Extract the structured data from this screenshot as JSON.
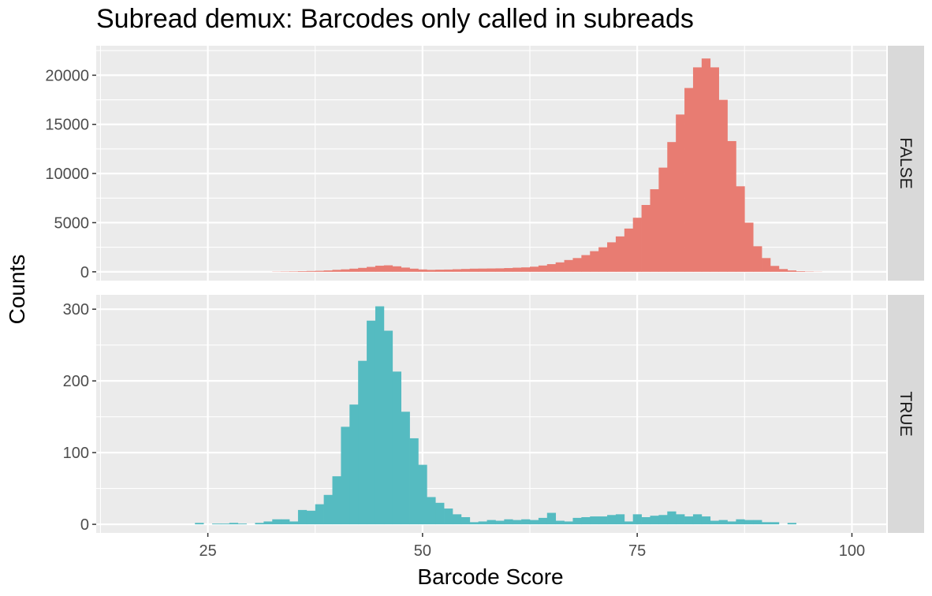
{
  "chart_data": {
    "type": "bar",
    "title": "Subread demux: Barcodes only called in subreads",
    "xlabel": "Barcode Score",
    "ylabel": "Counts",
    "xlim": [
      12,
      104
    ],
    "x_ticks": [
      25,
      50,
      75,
      100
    ],
    "bin_width": 1,
    "grid": true,
    "legend": "none",
    "panels": [
      {
        "name": "FALSE",
        "color": "#E87C72",
        "ylim": [
          -900,
          23000
        ],
        "y_ticks": [
          0,
          5000,
          10000,
          15000,
          20000
        ],
        "bins": [
          [
            33,
            20
          ],
          [
            34,
            30
          ],
          [
            35,
            40
          ],
          [
            36,
            60
          ],
          [
            37,
            80
          ],
          [
            38,
            100
          ],
          [
            39,
            140
          ],
          [
            40,
            200
          ],
          [
            41,
            250
          ],
          [
            42,
            320
          ],
          [
            43,
            400
          ],
          [
            44,
            500
          ],
          [
            45,
            620
          ],
          [
            46,
            660
          ],
          [
            47,
            560
          ],
          [
            48,
            430
          ],
          [
            49,
            320
          ],
          [
            50,
            240
          ],
          [
            51,
            200
          ],
          [
            52,
            220
          ],
          [
            53,
            230
          ],
          [
            54,
            260
          ],
          [
            55,
            290
          ],
          [
            56,
            320
          ],
          [
            57,
            330
          ],
          [
            58,
            340
          ],
          [
            59,
            350
          ],
          [
            60,
            380
          ],
          [
            61,
            420
          ],
          [
            62,
            450
          ],
          [
            63,
            520
          ],
          [
            64,
            640
          ],
          [
            65,
            780
          ],
          [
            66,
            960
          ],
          [
            67,
            1200
          ],
          [
            68,
            1400
          ],
          [
            69,
            1700
          ],
          [
            70,
            2100
          ],
          [
            71,
            2500
          ],
          [
            72,
            3000
          ],
          [
            73,
            3600
          ],
          [
            74,
            4400
          ],
          [
            75,
            5500
          ],
          [
            76,
            6800
          ],
          [
            77,
            8400
          ],
          [
            78,
            10600
          ],
          [
            79,
            13200
          ],
          [
            80,
            16000
          ],
          [
            81,
            18700
          ],
          [
            82,
            20800
          ],
          [
            83,
            21700
          ],
          [
            84,
            20800
          ],
          [
            85,
            17500
          ],
          [
            86,
            13300
          ],
          [
            87,
            8700
          ],
          [
            88,
            5000
          ],
          [
            89,
            2600
          ],
          [
            90,
            1400
          ],
          [
            91,
            600
          ],
          [
            92,
            280
          ],
          [
            93,
            140
          ],
          [
            94,
            60
          ],
          [
            95,
            30
          ],
          [
            96,
            15
          ]
        ]
      },
      {
        "name": "TRUE",
        "color": "#55BBC1",
        "ylim": [
          -12,
          320
        ],
        "y_ticks": [
          0,
          100,
          200,
          300
        ],
        "bins": [
          [
            24,
            2
          ],
          [
            26,
            1
          ],
          [
            27,
            1
          ],
          [
            28,
            2
          ],
          [
            29,
            1
          ],
          [
            31,
            2
          ],
          [
            32,
            4
          ],
          [
            33,
            7
          ],
          [
            34,
            7
          ],
          [
            35,
            4
          ],
          [
            36,
            20
          ],
          [
            37,
            19
          ],
          [
            38,
            28
          ],
          [
            39,
            41
          ],
          [
            40,
            67
          ],
          [
            41,
            136
          ],
          [
            42,
            167
          ],
          [
            43,
            228
          ],
          [
            44,
            284
          ],
          [
            45,
            304
          ],
          [
            46,
            270
          ],
          [
            47,
            213
          ],
          [
            48,
            157
          ],
          [
            49,
            120
          ],
          [
            50,
            83
          ],
          [
            51,
            38
          ],
          [
            52,
            30
          ],
          [
            53,
            22
          ],
          [
            54,
            14
          ],
          [
            55,
            10
          ],
          [
            56,
            3
          ],
          [
            57,
            4
          ],
          [
            58,
            6
          ],
          [
            59,
            5
          ],
          [
            60,
            7
          ],
          [
            61,
            6
          ],
          [
            62,
            7
          ],
          [
            63,
            6
          ],
          [
            64,
            9
          ],
          [
            65,
            16
          ],
          [
            66,
            5
          ],
          [
            67,
            4
          ],
          [
            68,
            9
          ],
          [
            69,
            10
          ],
          [
            70,
            11
          ],
          [
            71,
            11
          ],
          [
            72,
            13
          ],
          [
            73,
            14
          ],
          [
            74,
            4
          ],
          [
            75,
            14
          ],
          [
            76,
            10
          ],
          [
            77,
            12
          ],
          [
            78,
            13
          ],
          [
            79,
            18
          ],
          [
            80,
            14
          ],
          [
            81,
            11
          ],
          [
            82,
            14
          ],
          [
            83,
            11
          ],
          [
            84,
            5
          ],
          [
            85,
            6
          ],
          [
            86,
            4
          ],
          [
            87,
            7
          ],
          [
            88,
            6
          ],
          [
            89,
            6
          ],
          [
            90,
            3
          ],
          [
            91,
            3
          ],
          [
            93,
            2
          ]
        ]
      }
    ]
  }
}
